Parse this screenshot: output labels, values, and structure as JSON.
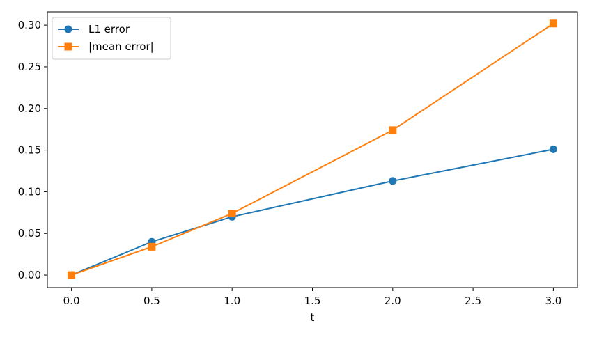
{
  "chart_data": {
    "type": "line",
    "title": "",
    "xlabel": "t",
    "ylabel": "",
    "xlim": [
      -0.15,
      3.15
    ],
    "ylim": [
      -0.015,
      0.316
    ],
    "xticks": [
      0.0,
      0.5,
      1.0,
      1.5,
      2.0,
      2.5,
      3.0
    ],
    "xtick_labels": [
      "0.0",
      "0.5",
      "1.0",
      "1.5",
      "2.0",
      "2.5",
      "3.0"
    ],
    "yticks": [
      0.0,
      0.05,
      0.1,
      0.15,
      0.2,
      0.25,
      0.3
    ],
    "ytick_labels": [
      "0.00",
      "0.05",
      "0.10",
      "0.15",
      "0.20",
      "0.25",
      "0.30"
    ],
    "grid": false,
    "legend_position": "top-left",
    "series": [
      {
        "name": "L1 error",
        "color": "#1f77b4",
        "marker": "circle",
        "x": [
          0.0,
          0.5,
          1.0,
          2.0,
          3.0
        ],
        "y": [
          0.0,
          0.04,
          0.07,
          0.113,
          0.151
        ]
      },
      {
        "name": "|mean error|",
        "color": "#ff7f0e",
        "marker": "square",
        "x": [
          0.0,
          0.5,
          1.0,
          2.0,
          3.0
        ],
        "y": [
          0.0,
          0.034,
          0.074,
          0.174,
          0.302
        ]
      }
    ]
  }
}
